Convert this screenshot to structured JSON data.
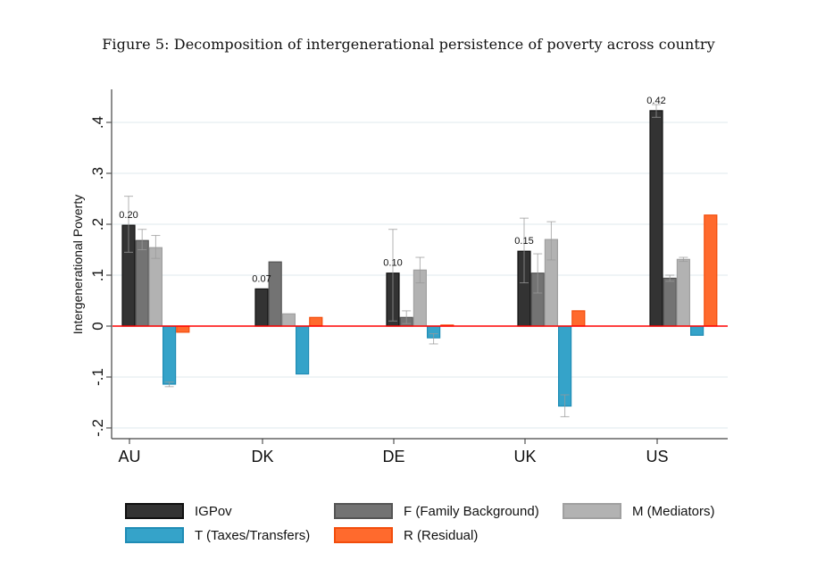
{
  "title": "Figure 5: Decomposition of intergenerational persistence of poverty across country",
  "chart_data": {
    "type": "bar",
    "title": "Figure 5: Decomposition of intergenerational persistence of poverty across country",
    "xlabel": "",
    "ylabel": "Intergenerational Poverty",
    "ylim": [
      -0.22,
      0.46
    ],
    "yticks": [
      -0.2,
      -0.1,
      0,
      0.1,
      0.2,
      0.3,
      0.4
    ],
    "ytick_labels": [
      "-.2",
      "-.1",
      "0",
      ".1",
      ".2",
      ".3",
      ".4"
    ],
    "grid": true,
    "legend_position": "bottom",
    "categories": [
      "AU",
      "DK",
      "DE",
      "UK",
      "US"
    ],
    "series": [
      {
        "name": "IGPov",
        "color": "#333333",
        "edge": "#111111",
        "values": [
          0.198,
          0.073,
          0.104,
          0.147,
          0.423
        ],
        "errors": [
          [
            0.145,
            0.255
          ],
          null,
          [
            0.01,
            0.19
          ],
          [
            0.085,
            0.212
          ],
          [
            0.41,
            0.435
          ]
        ]
      },
      {
        "name": "F (Family Background)",
        "color": "#737373",
        "edge": "#555555",
        "values": [
          0.168,
          0.126,
          0.017,
          0.104,
          0.094
        ],
        "errors": [
          [
            0.15,
            0.19
          ],
          null,
          [
            0.005,
            0.03
          ],
          [
            0.065,
            0.142
          ],
          [
            0.088,
            0.1
          ]
        ]
      },
      {
        "name": "M (Mediators)",
        "color": "#b2b2b2",
        "edge": "#a0a0a0",
        "values": [
          0.154,
          0.024,
          0.11,
          0.17,
          0.131
        ],
        "errors": [
          [
            0.133,
            0.178
          ],
          null,
          [
            0.085,
            0.135
          ],
          [
            0.13,
            0.205
          ],
          [
            0.127,
            0.135
          ]
        ]
      },
      {
        "name": "T (Taxes/Transfers)",
        "color": "#35a3c9",
        "edge": "#1f8cb5",
        "values": [
          -0.114,
          -0.094,
          -0.023,
          -0.157,
          -0.018
        ],
        "errors": [
          [
            -0.119,
            -0.11
          ],
          null,
          [
            -0.035,
            -0.015
          ],
          [
            -0.178,
            -0.135
          ],
          null
        ]
      },
      {
        "name": "R (Residual)",
        "color": "#ff6a2d",
        "edge": "#f24d0c",
        "values": [
          -0.012,
          0.017,
          0.002,
          0.03,
          0.218
        ],
        "errors": [
          null,
          null,
          null,
          null,
          null
        ]
      }
    ],
    "data_labels": [
      "0.20",
      "0.07",
      "0.10",
      "0.15",
      "0.42"
    ],
    "zero_line_color": "#ff0000"
  },
  "legend": [
    {
      "label": "IGPov",
      "color": "#333333",
      "edge": "#111111"
    },
    {
      "label": "F (Family Background)",
      "color": "#737373",
      "edge": "#555555"
    },
    {
      "label": "M (Mediators)",
      "color": "#b2b2b2",
      "edge": "#a0a0a0"
    },
    {
      "label": "T (Taxes/Transfers)",
      "color": "#35a3c9",
      "edge": "#1f8cb5"
    },
    {
      "label": "R (Residual)",
      "color": "#ff6a2d",
      "edge": "#f24d0c"
    }
  ]
}
